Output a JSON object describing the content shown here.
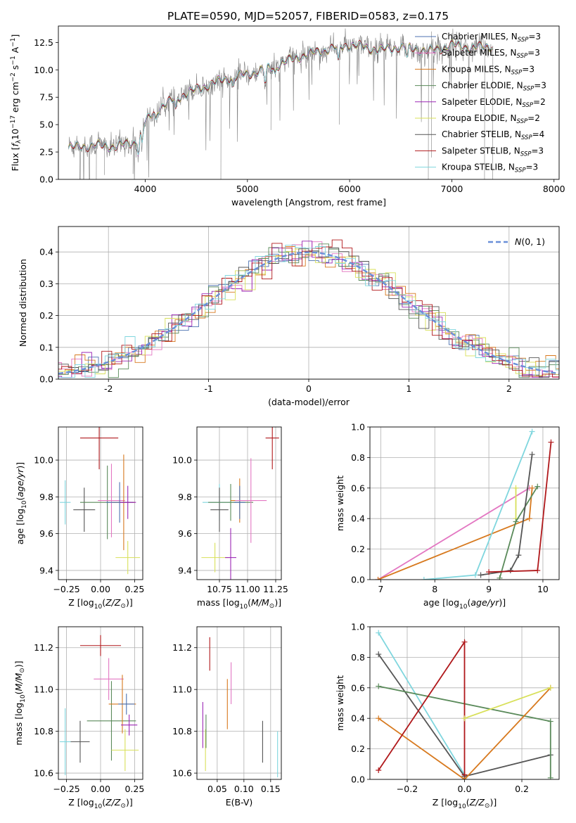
{
  "figure_title": "PLATE=0590, MJD=52057, FIBERID=0583, z=0.175",
  "colors": {
    "chabrier_miles": "#4c72b0",
    "salpeter_miles": "#e377c2",
    "kroupa_miles": "#d7791e",
    "chabrier_elodie": "#5a8a5a",
    "salpeter_elodie": "#9b27b5",
    "kroupa_elodie": "#d8e05a",
    "chabrier_stelib": "#555555",
    "salpeter_stelib": "#b0181b",
    "kroupa_stelib": "#7fd6de",
    "data": "#808080",
    "normal": "#6a8fd8"
  },
  "chart_data": [
    {
      "id": "spectrum",
      "type": "line",
      "xlabel": "wavelength [Angstrom, rest frame]",
      "ylabel": "Flux [f_λ 10^-17 erg cm^-2 s^-1 A^-1]",
      "xlim": [
        3150,
        8050
      ],
      "ylim": [
        0,
        14
      ],
      "xticks": [
        4000,
        5000,
        6000,
        7000,
        8000
      ],
      "yticks": [
        0.0,
        2.5,
        5.0,
        7.5,
        10.0,
        12.5
      ],
      "legend_position": "right",
      "legend": [
        {
          "key": "chabrier_miles",
          "label": "Chabrier MILES, N",
          "sub": "SSP",
          "suffix": "=3"
        },
        {
          "key": "salpeter_miles",
          "label": "Salpeter MILES, N",
          "sub": "SSP",
          "suffix": "=3"
        },
        {
          "key": "kroupa_miles",
          "label": "Kroupa MILES, N",
          "sub": "SSP",
          "suffix": "=3"
        },
        {
          "key": "chabrier_elodie",
          "label": "Chabrier ELODIE, N",
          "sub": "SSP",
          "suffix": "=3"
        },
        {
          "key": "salpeter_elodie",
          "label": "Salpeter ELODIE, N",
          "sub": "SSP",
          "suffix": "=2"
        },
        {
          "key": "kroupa_elodie",
          "label": "Kroupa ELODIE, N",
          "sub": "SSP",
          "suffix": "=2"
        },
        {
          "key": "chabrier_stelib",
          "label": "Chabrier STELIB, N",
          "sub": "SSP",
          "suffix": "=4"
        },
        {
          "key": "salpeter_stelib",
          "label": "Salpeter STELIB, N",
          "sub": "SSP",
          "suffix": "=3"
        },
        {
          "key": "kroupa_stelib",
          "label": "Kroupa STELIB, N",
          "sub": "SSP",
          "suffix": "=3"
        }
      ],
      "continuum": {
        "x": [
          3250,
          3500,
          3700,
          3900,
          4000,
          4100,
          4300,
          4500,
          4800,
          5000,
          5200,
          5500,
          5800,
          6000,
          6300,
          6500,
          6800,
          7000,
          7200,
          7400
        ],
        "y": [
          2.9,
          3.1,
          3.0,
          3.4,
          5.2,
          6.3,
          7.4,
          8.2,
          9.2,
          9.6,
          10.1,
          11.2,
          11.9,
          12.3,
          11.8,
          12.1,
          11.7,
          12.3,
          12.0,
          12.2
        ]
      }
    },
    {
      "id": "residuals",
      "type": "histogram",
      "xlabel": "(data-model)/error",
      "ylabel": "Normed distribution",
      "xlim": [
        -2.5,
        2.5
      ],
      "ylim": [
        0,
        0.48
      ],
      "xticks": [
        -2,
        -1,
        0,
        1,
        2
      ],
      "yticks": [
        0.0,
        0.1,
        0.2,
        0.3,
        0.4
      ],
      "grid": true,
      "legend_position": "top-right",
      "legend_label": "N(0,1)",
      "bin_width": 0.1
    },
    {
      "id": "age_vs_Z",
      "type": "errorbar",
      "xlabel": "Z [log10(Z/Z⊙)]",
      "ylabel": "age  [log10(age/yr)]",
      "xlim": [
        -0.31,
        0.31
      ],
      "ylim": [
        9.35,
        10.18
      ],
      "xticks": [
        -0.25,
        0.0,
        0.25
      ],
      "xtick_labels": [
        "−0.25",
        "0.00",
        "0.25"
      ],
      "yticks": [
        9.4,
        9.6,
        9.8,
        10.0
      ],
      "grid": true,
      "points": [
        {
          "key": "kroupa_stelib",
          "x": -0.26,
          "xerr": 0.04,
          "y": 9.77,
          "yerr": 0.12
        },
        {
          "key": "chabrier_stelib",
          "x": -0.12,
          "xerr": 0.08,
          "y": 9.73,
          "yerr": 0.12
        },
        {
          "key": "salpeter_stelib",
          "x": -0.01,
          "xerr": 0.14,
          "y": 10.12,
          "yerr": 0.17
        },
        {
          "key": "chabrier_elodie",
          "x": 0.05,
          "xerr": 0.2,
          "y": 9.77,
          "yerr": 0.2
        },
        {
          "key": "salpeter_miles",
          "x": 0.08,
          "xerr": 0.1,
          "y": 9.78,
          "yerr": 0.2
        },
        {
          "key": "kroupa_miles",
          "x": 0.17,
          "xerr": 0.08,
          "y": 9.77,
          "yerr": 0.26
        },
        {
          "key": "chabrier_miles",
          "x": 0.14,
          "xerr": 0.1,
          "y": 9.77,
          "yerr": 0.11
        },
        {
          "key": "salpeter_elodie",
          "x": 0.2,
          "xerr": 0.06,
          "y": 9.77,
          "yerr": 0.09
        },
        {
          "key": "kroupa_elodie",
          "x": 0.2,
          "xerr": 0.09,
          "y": 9.47,
          "yerr": 0.09
        }
      ]
    },
    {
      "id": "age_vs_mass",
      "type": "errorbar",
      "xlabel": "mass [log10(M/M⊙)]",
      "ylabel": "",
      "xlim": [
        10.55,
        11.3
      ],
      "ylim": [
        9.35,
        10.18
      ],
      "xticks": [
        10.75,
        11.0,
        11.25
      ],
      "xtick_labels": [
        "10.75",
        "11.00",
        "11.25"
      ],
      "yticks": [
        9.4,
        9.6,
        9.8,
        10.0
      ],
      "grid": true,
      "points": [
        {
          "key": "kroupa_stelib",
          "x": 10.75,
          "xerr": 0.15,
          "y": 9.77,
          "yerr": 0.1
        },
        {
          "key": "chabrier_stelib",
          "x": 10.75,
          "xerr": 0.08,
          "y": 9.73,
          "yerr": 0.12
        },
        {
          "key": "kroupa_elodie",
          "x": 10.71,
          "xerr": 0.12,
          "y": 9.47,
          "yerr": 0.08
        },
        {
          "key": "chabrier_elodie",
          "x": 10.85,
          "xerr": 0.2,
          "y": 9.77,
          "yerr": 0.1
        },
        {
          "key": "salpeter_elodie",
          "x": 10.85,
          "xerr": 0.05,
          "y": 9.47,
          "yerr": 0.16
        },
        {
          "key": "kroupa_miles",
          "x": 10.93,
          "xerr": 0.08,
          "y": 9.78,
          "yerr": 0.12
        },
        {
          "key": "chabrier_miles",
          "x": 10.93,
          "xerr": 0.05,
          "y": 9.77,
          "yerr": 0.09
        },
        {
          "key": "salpeter_miles",
          "x": 11.03,
          "xerr": 0.14,
          "y": 9.78,
          "yerr": 0.23
        },
        {
          "key": "salpeter_stelib",
          "x": 11.22,
          "xerr": 0.06,
          "y": 10.12,
          "yerr": 0.17
        }
      ]
    },
    {
      "id": "weight_vs_age",
      "type": "line",
      "xlabel": "age  [log10(age/yr)]",
      "ylabel": "mass weight",
      "xlim": [
        6.8,
        10.3
      ],
      "ylim": [
        0,
        1
      ],
      "xticks": [
        7,
        8,
        9,
        10
      ],
      "yticks": [
        0.0,
        0.2,
        0.4,
        0.6,
        0.8,
        1.0
      ],
      "grid": true,
      "series": [
        {
          "key": "salpeter_miles",
          "x": [
            6.95,
            9.75
          ],
          "y": [
            0.0,
            0.6
          ]
        },
        {
          "key": "kroupa_miles",
          "x": [
            6.95,
            9.75,
            9.8
          ],
          "y": [
            0.0,
            0.4,
            0.6
          ]
        },
        {
          "key": "kroupa_elodie",
          "x": [
            9.5,
            9.5
          ],
          "y": [
            0.4,
            0.6
          ]
        },
        {
          "key": "chabrier_elodie",
          "x": [
            9.2,
            9.5,
            9.9
          ],
          "y": [
            0.01,
            0.38,
            0.61
          ]
        },
        {
          "key": "kroupa_stelib",
          "x": [
            7.8,
            8.75,
            9.8
          ],
          "y": [
            0.0,
            0.03,
            0.97
          ]
        },
        {
          "key": "chabrier_stelib",
          "x": [
            8.85,
            9.4,
            9.55,
            9.8
          ],
          "y": [
            0.03,
            0.06,
            0.16,
            0.82
          ]
        },
        {
          "key": "salpeter_stelib",
          "x": [
            9.0,
            9.9,
            10.15
          ],
          "y": [
            0.05,
            0.06,
            0.9
          ]
        }
      ]
    },
    {
      "id": "mass_vs_Z",
      "type": "errorbar",
      "xlabel": "Z [log10(Z/Z⊙)]",
      "ylabel": "mass [log10(M/M⊙)]",
      "xlim": [
        -0.31,
        0.31
      ],
      "ylim": [
        10.57,
        11.3
      ],
      "xticks": [
        -0.25,
        0.0,
        0.25
      ],
      "xtick_labels": [
        "−0.25",
        "0.00",
        "0.25"
      ],
      "yticks": [
        10.6,
        10.8,
        11.0,
        11.2
      ],
      "grid": true,
      "points": [
        {
          "key": "kroupa_stelib",
          "x": -0.26,
          "xerr": 0.04,
          "y": 10.75,
          "yerr": 0.16
        },
        {
          "key": "chabrier_stelib",
          "x": -0.15,
          "xerr": 0.07,
          "y": 10.75,
          "yerr": 0.1
        },
        {
          "key": "salpeter_stelib",
          "x": 0.0,
          "xerr": 0.15,
          "y": 11.21,
          "yerr": 0.05
        },
        {
          "key": "chabrier_elodie",
          "x": 0.08,
          "xerr": 0.18,
          "y": 10.85,
          "yerr": 0.19
        },
        {
          "key": "salpeter_miles",
          "x": 0.06,
          "xerr": 0.11,
          "y": 11.05,
          "yerr": 0.1
        },
        {
          "key": "kroupa_miles",
          "x": 0.16,
          "xerr": 0.1,
          "y": 10.93,
          "yerr": 0.14
        },
        {
          "key": "chabrier_miles",
          "x": 0.19,
          "xerr": 0.06,
          "y": 10.93,
          "yerr": 0.05
        },
        {
          "key": "salpeter_elodie",
          "x": 0.21,
          "xerr": 0.06,
          "y": 10.83,
          "yerr": 0.05
        },
        {
          "key": "kroupa_elodie",
          "x": 0.18,
          "xerr": 0.1,
          "y": 10.71,
          "yerr": 0.1
        }
      ]
    },
    {
      "id": "mass_vs_ebv",
      "type": "errorbar",
      "xlabel": "E(B-V)",
      "ylabel": "",
      "xlim": [
        0.012,
        0.17
      ],
      "ylim": [
        10.57,
        11.3
      ],
      "xticks": [
        0.05,
        0.1,
        0.15
      ],
      "xtick_labels": [
        "0.05",
        "0.10",
        "0.15"
      ],
      "yticks": [
        10.6,
        10.8,
        11.0,
        11.2
      ],
      "grid": true,
      "points": [
        {
          "key": "salpeter_elodie",
          "x": 0.023,
          "xerr": 0,
          "y": 10.83,
          "yerr": 0.11
        },
        {
          "key": "kroupa_elodie",
          "x": 0.028,
          "xerr": 0,
          "y": 10.71,
          "yerr": 0.1
        },
        {
          "key": "chabrier_elodie",
          "x": 0.029,
          "xerr": 0,
          "y": 10.8,
          "yerr": 0.08
        },
        {
          "key": "salpeter_stelib",
          "x": 0.036,
          "xerr": 0,
          "y": 11.17,
          "yerr": 0.08
        },
        {
          "key": "kroupa_miles",
          "x": 0.069,
          "xerr": 0,
          "y": 10.93,
          "yerr": 0.12
        },
        {
          "key": "salpeter_miles",
          "x": 0.076,
          "xerr": 0,
          "y": 11.03,
          "yerr": 0.1
        },
        {
          "key": "chabrier_stelib",
          "x": 0.135,
          "xerr": 0,
          "y": 10.75,
          "yerr": 0.1
        },
        {
          "key": "kroupa_stelib",
          "x": 0.163,
          "xerr": 0,
          "y": 10.69,
          "yerr": 0.11
        }
      ]
    },
    {
      "id": "weight_vs_Z",
      "type": "line",
      "xlabel": "Z [log10(Z/Z⊙)]",
      "ylabel": "mass weight",
      "xlim": [
        -0.33,
        0.33
      ],
      "ylim": [
        0,
        1
      ],
      "xticks": [
        -0.2,
        0.0,
        0.2
      ],
      "xtick_labels": [
        "−0.2",
        "0.0",
        "0.2"
      ],
      "yticks": [
        0.0,
        0.2,
        0.4,
        0.6,
        0.8,
        1.0
      ],
      "grid": true,
      "series": [
        {
          "key": "kroupa_stelib",
          "x": [
            -0.3,
            0.0,
            0.0
          ],
          "y": [
            0.96,
            0.03,
            0.01
          ]
        },
        {
          "key": "chabrier_stelib",
          "x": [
            -0.3,
            0.0,
            0.3
          ],
          "y": [
            0.82,
            0.02,
            0.16
          ]
        },
        {
          "key": "chabrier_elodie",
          "x": [
            -0.3,
            0.3,
            0.3
          ],
          "y": [
            0.61,
            0.38,
            0.01
          ]
        },
        {
          "key": "kroupa_miles",
          "x": [
            -0.3,
            0.0,
            0.3
          ],
          "y": [
            0.4,
            0.0,
            0.6
          ]
        },
        {
          "key": "salpeter_stelib",
          "x": [
            -0.3,
            0.0,
            0.0
          ],
          "y": [
            0.06,
            0.9,
            0.03
          ]
        },
        {
          "key": "kroupa_elodie",
          "x": [
            0.0,
            0.3
          ],
          "y": [
            0.4,
            0.6
          ]
        }
      ]
    }
  ]
}
